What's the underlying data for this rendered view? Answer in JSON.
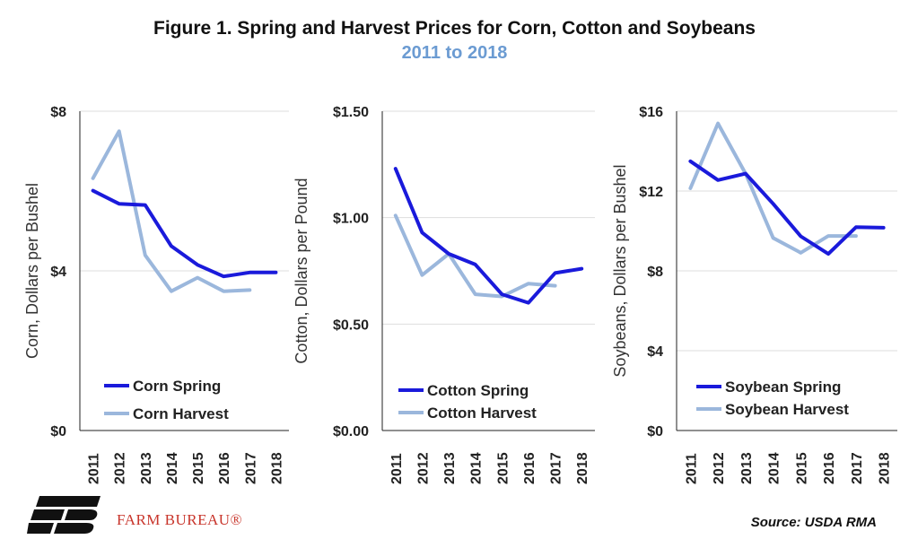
{
  "title": "Figure 1. Spring and Harvest Prices for Corn, Cotton and Soybeans",
  "subtitle": "2011 to 2018",
  "brand": "FARM BUREAU®",
  "source": "Source: USDA RMA",
  "colors": {
    "spring": "#1a1adb",
    "harvest": "#9bb7dc",
    "axis": "#222222",
    "grid": "#dddddd",
    "title": "#111111",
    "subtitle": "#6b9bd2",
    "brand": "#c8352b"
  },
  "chart_data": [
    {
      "type": "line",
      "x": [
        "2011",
        "2012",
        "2013",
        "2014",
        "2015",
        "2016",
        "2017",
        "2018"
      ],
      "ylabel": "Corn, Dollars per Bushel",
      "ylim": [
        0,
        8
      ],
      "yticks": [
        0,
        4,
        8
      ],
      "ytick_labels": [
        "$0",
        "$4",
        "$8"
      ],
      "grid": true,
      "legend_position": "bottom-left",
      "series": [
        {
          "name": "Corn Spring",
          "values": [
            6.01,
            5.68,
            5.65,
            4.62,
            4.15,
            3.86,
            3.96,
            3.96
          ]
        },
        {
          "name": "Corn Harvest",
          "values": [
            6.32,
            7.5,
            4.39,
            3.49,
            3.83,
            3.49,
            3.52,
            null
          ]
        }
      ]
    },
    {
      "type": "line",
      "x": [
        "2011",
        "2012",
        "2013",
        "2014",
        "2015",
        "2016",
        "2017",
        "2018"
      ],
      "ylabel": "Cotton, Dollars per Pound",
      "ylim": [
        0,
        1.5
      ],
      "yticks": [
        0,
        0.5,
        1.0,
        1.5
      ],
      "ytick_labels": [
        "$0.00",
        "$0.50",
        "$1.00",
        "$1.50"
      ],
      "grid": true,
      "legend_position": "bottom-left",
      "series": [
        {
          "name": "Cotton Spring",
          "values": [
            1.23,
            0.93,
            0.83,
            0.78,
            0.64,
            0.6,
            0.74,
            0.76
          ]
        },
        {
          "name": "Cotton Harvest",
          "values": [
            1.01,
            0.73,
            0.83,
            0.64,
            0.63,
            0.69,
            0.68,
            null
          ]
        }
      ]
    },
    {
      "type": "line",
      "x": [
        "2011",
        "2012",
        "2013",
        "2014",
        "2015",
        "2016",
        "2017",
        "2018"
      ],
      "ylabel": "Soybeans, Dollars per Bushel",
      "ylim": [
        0,
        16
      ],
      "yticks": [
        0,
        4,
        8,
        12,
        16
      ],
      "ytick_labels": [
        "$0",
        "$4",
        "$8",
        "$12",
        "$16"
      ],
      "grid": true,
      "legend_position": "bottom-left",
      "series": [
        {
          "name": "Soybean Spring",
          "values": [
            13.49,
            12.55,
            12.87,
            11.36,
            9.73,
            8.85,
            10.19,
            10.16
          ]
        },
        {
          "name": "Soybean Harvest",
          "values": [
            12.14,
            15.39,
            12.87,
            9.65,
            8.91,
            9.75,
            9.75,
            null
          ]
        }
      ]
    }
  ]
}
